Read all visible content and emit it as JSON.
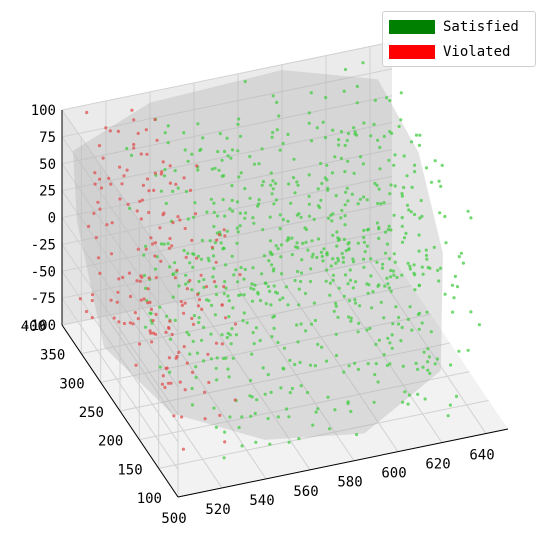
{
  "chart_data": {
    "type": "scatter",
    "projection": "3d",
    "title": "",
    "xlabel": "",
    "ylabel": "",
    "zlabel": "",
    "xlim": [
      500,
      650
    ],
    "ylim": [
      100,
      400
    ],
    "zlim": [
      -100,
      100
    ],
    "x_ticks": [
      "500",
      "520",
      "540",
      "560",
      "580",
      "600",
      "620",
      "640"
    ],
    "y_ticks": [
      "100",
      "150",
      "200",
      "250",
      "300",
      "350",
      "400"
    ],
    "z_ticks": [
      "-100",
      "-75",
      "-50",
      "-25",
      "0",
      "25",
      "50",
      "75",
      "100"
    ],
    "grid": true,
    "legend_position": "top-right",
    "series": [
      {
        "name": "Satisfied",
        "color": "#008000",
        "point_color": "#44cc44",
        "approx_points": 700,
        "region": {
          "x_min": 525,
          "x_max": 645,
          "y_min": 120,
          "y_max": 400,
          "z_min": -100,
          "z_max": 100
        }
      },
      {
        "name": "Violated",
        "color": "#ff0000",
        "point_color": "#e05050",
        "approx_points": 180,
        "region": {
          "x_min": 505,
          "x_max": 540,
          "y_min": 150,
          "y_max": 400,
          "z_min": -100,
          "z_max": 100
        }
      }
    ],
    "surface": {
      "color": "#b0b0b0",
      "opacity": 0.35
    }
  }
}
